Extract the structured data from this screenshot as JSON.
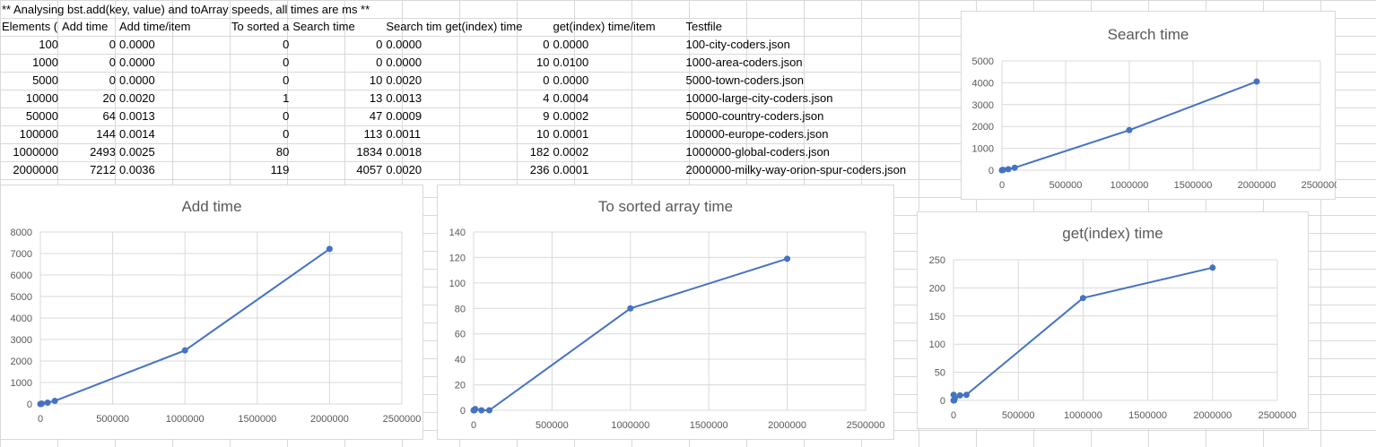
{
  "sheet": {
    "title": "** Analysing bst.add(key, value) and toArray speeds, all times are ms **",
    "headers": [
      "Elements (",
      "Add time",
      "Add time/item",
      "To sorted a",
      "Search time",
      "Search tim",
      "get(index) time",
      "get(index) time/item",
      "Testfile"
    ],
    "rows": [
      [
        "100",
        "0",
        "0.0000",
        "0",
        "0",
        "0.0000",
        "0",
        "0.0000",
        "100-city-coders.json"
      ],
      [
        "1000",
        "0",
        "0.0000",
        "0",
        "0",
        "0.0000",
        "10",
        "0.0100",
        "1000-area-coders.json"
      ],
      [
        "5000",
        "0",
        "0.0000",
        "0",
        "10",
        "0.0020",
        "0",
        "0.0000",
        "5000-town-coders.json"
      ],
      [
        "10000",
        "20",
        "0.0020",
        "1",
        "13",
        "0.0013",
        "4",
        "0.0004",
        "10000-large-city-coders.json"
      ],
      [
        "50000",
        "64",
        "0.0013",
        "0",
        "47",
        "0.0009",
        "9",
        "0.0002",
        "50000-country-coders.json"
      ],
      [
        "100000",
        "144",
        "0.0014",
        "0",
        "113",
        "0.0011",
        "10",
        "0.0001",
        "100000-europe-coders.json"
      ],
      [
        "1000000",
        "2493",
        "0.0025",
        "80",
        "1834",
        "0.0018",
        "182",
        "0.0002",
        "1000000-global-coders.json"
      ],
      [
        "2000000",
        "7212",
        "0.0036",
        "119",
        "4057",
        "0.0020",
        "236",
        "0.0001",
        "2000000-milky-way-orion-spur-coders.json"
      ]
    ]
  },
  "chart_data": [
    {
      "type": "line",
      "title": "Search time",
      "x": [
        100,
        1000,
        5000,
        10000,
        50000,
        100000,
        1000000,
        2000000
      ],
      "y": [
        0,
        0,
        10,
        13,
        47,
        113,
        1834,
        4057
      ],
      "xticks": [
        0,
        500000,
        1000000,
        1500000,
        2000000,
        2500000
      ],
      "yticks": [
        0,
        1000,
        2000,
        3000,
        4000,
        5000
      ],
      "xlim": [
        0,
        2500000
      ],
      "ylim": [
        0,
        5000
      ],
      "color": "#4472c4",
      "grid": true
    },
    {
      "type": "line",
      "title": "Add time",
      "x": [
        100,
        1000,
        5000,
        10000,
        50000,
        100000,
        1000000,
        2000000
      ],
      "y": [
        0,
        0,
        0,
        20,
        64,
        144,
        2493,
        7212
      ],
      "xticks": [
        0,
        500000,
        1000000,
        1500000,
        2000000,
        2500000
      ],
      "yticks": [
        0,
        1000,
        2000,
        3000,
        4000,
        5000,
        6000,
        7000,
        8000
      ],
      "xlim": [
        0,
        2500000
      ],
      "ylim": [
        0,
        8000
      ],
      "color": "#4472c4",
      "grid": true
    },
    {
      "type": "line",
      "title": "To sorted array time",
      "x": [
        100,
        1000,
        5000,
        10000,
        50000,
        100000,
        1000000,
        2000000
      ],
      "y": [
        0,
        0,
        0,
        1,
        0,
        0,
        80,
        119
      ],
      "xticks": [
        0,
        500000,
        1000000,
        1500000,
        2000000,
        2500000
      ],
      "yticks": [
        0,
        20,
        40,
        60,
        80,
        100,
        120,
        140
      ],
      "xlim": [
        0,
        2500000
      ],
      "ylim": [
        0,
        140
      ],
      "color": "#4472c4",
      "grid": true
    },
    {
      "type": "line",
      "title": "get(index) time",
      "x": [
        100,
        1000,
        5000,
        10000,
        50000,
        100000,
        1000000,
        2000000
      ],
      "y": [
        0,
        10,
        0,
        4,
        9,
        10,
        182,
        236
      ],
      "xticks": [
        0,
        500000,
        1000000,
        1500000,
        2000000,
        2500000
      ],
      "yticks": [
        0,
        50,
        100,
        150,
        200,
        250
      ],
      "xlim": [
        0,
        2500000
      ],
      "ylim": [
        0,
        250
      ],
      "color": "#4472c4",
      "grid": true
    }
  ]
}
